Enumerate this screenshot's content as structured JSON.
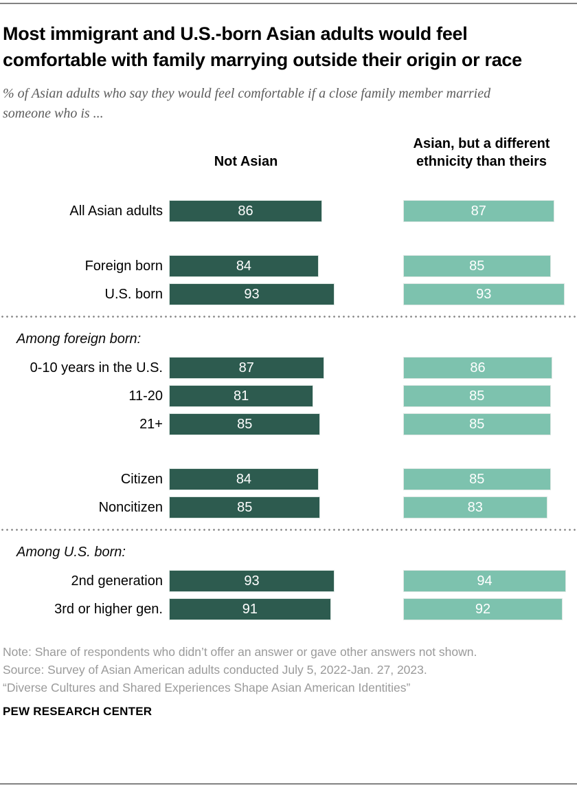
{
  "header": {
    "title": "Most immigrant and U.S.-born Asian adults would feel comfortable with family marrying outside their origin or race",
    "subtitle": "% of Asian adults who say they would feel comfortable if a close family member married someone who is ..."
  },
  "chart_data": {
    "type": "bar",
    "orientation": "horizontal",
    "value_unit": "%",
    "xlim": [
      0,
      100
    ],
    "grid": false,
    "legend_position": "column-headers-above-bars",
    "series_names": [
      "Not Asian",
      "Asian, but a different ethnicity than theirs"
    ],
    "colors": {
      "not_asian": "#2d5b4f",
      "different_ethnicity": "#7dc2ae",
      "value_label": "#ffffff"
    },
    "categories": [
      "All Asian adults",
      "Foreign born",
      "U.S. born",
      "0-10 years in the U.S.",
      "11-20",
      "21+",
      "Citizen",
      "Noncitizen",
      "2nd generation",
      "3rd or higher gen."
    ],
    "series": [
      {
        "name": "Not Asian",
        "values": [
          86,
          84,
          93,
          87,
          81,
          85,
          84,
          85,
          93,
          91
        ]
      },
      {
        "name": "Asian, but a different ethnicity than theirs",
        "values": [
          87,
          85,
          93,
          86,
          85,
          85,
          85,
          83,
          94,
          92
        ]
      }
    ],
    "section_annotations": [
      "Among foreign born:",
      "Among U.S. born:"
    ],
    "rows": [
      {
        "type": "bar",
        "label": "All Asian adults",
        "values": [
          86,
          87
        ]
      },
      {
        "type": "gap"
      },
      {
        "type": "bar",
        "label": "Foreign born",
        "values": [
          84,
          85
        ]
      },
      {
        "type": "bar",
        "label": "U.S. born",
        "values": [
          93,
          93
        ]
      },
      {
        "type": "divider"
      },
      {
        "type": "section",
        "label": "Among foreign born:"
      },
      {
        "type": "bar",
        "label": "0-10 years in the U.S.",
        "values": [
          87,
          86
        ]
      },
      {
        "type": "bar",
        "label": "11-20",
        "values": [
          81,
          85
        ]
      },
      {
        "type": "bar",
        "label": "21+",
        "values": [
          85,
          85
        ]
      },
      {
        "type": "gap"
      },
      {
        "type": "bar",
        "label": "Citizen",
        "values": [
          84,
          85
        ]
      },
      {
        "type": "bar",
        "label": "Noncitizen",
        "values": [
          85,
          83
        ]
      },
      {
        "type": "divider"
      },
      {
        "type": "section",
        "label": "Among U.S. born:"
      },
      {
        "type": "bar",
        "label": "2nd generation",
        "values": [
          93,
          94
        ]
      },
      {
        "type": "bar",
        "label": "3rd or higher gen.",
        "values": [
          91,
          92
        ]
      }
    ]
  },
  "footer": {
    "note": "Note: Share of respondents who didn’t offer an answer or gave other answers not shown.",
    "source": "Source: Survey of Asian American adults conducted July 5, 2022-Jan. 27, 2023.",
    "report": "“Diverse Cultures and Shared Experiences Shape Asian American Identities”",
    "brand": "PEW RESEARCH CENTER"
  }
}
